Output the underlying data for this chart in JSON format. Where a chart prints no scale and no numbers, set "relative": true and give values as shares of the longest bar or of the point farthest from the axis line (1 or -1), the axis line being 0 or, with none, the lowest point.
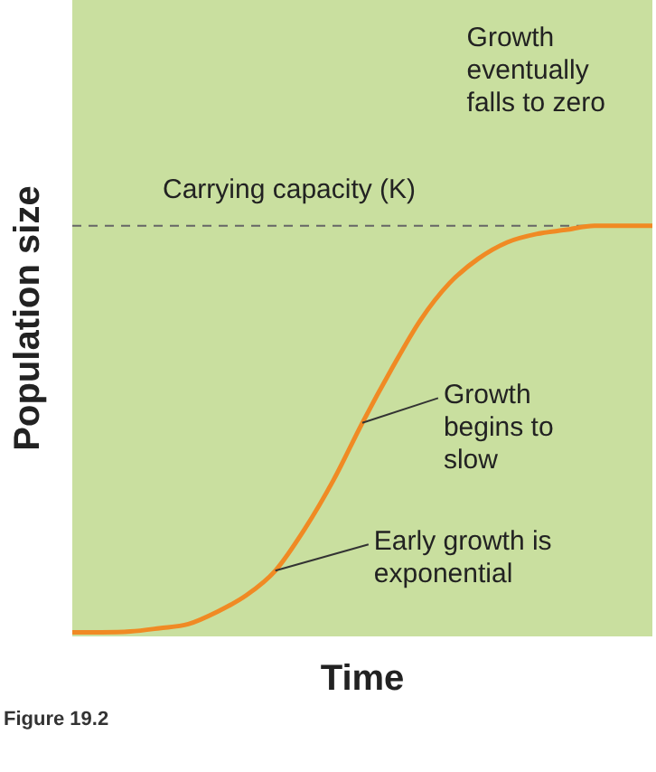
{
  "chart_data": {
    "type": "line",
    "relative": true,
    "xlabel": "Time",
    "ylabel": "Population size",
    "categories": [
      null,
      null,
      null,
      null,
      null,
      null,
      null,
      null,
      null,
      null,
      null,
      null,
      null,
      null,
      null,
      null,
      null,
      null,
      null,
      null,
      null
    ],
    "series": [
      {
        "color": "#f08a24",
        "values": [
          0.01,
          0.01,
          0.012,
          0.02,
          0.03,
          0.06,
          0.1,
          0.16,
          0.26,
          0.38,
          0.52,
          0.65,
          0.77,
          0.86,
          0.92,
          0.96,
          0.98,
          0.99,
          1,
          1,
          1
        ]
      }
    ],
    "ref_lines": [
      {
        "axis": "y",
        "value": 1,
        "label": "Carrying capacity (K)",
        "color": "#666666",
        "line_style": "dashed"
      }
    ],
    "annotations": [
      "Growth eventually falls to zero",
      "Growth begins to slow",
      "Early growth is exponential",
      "Figure 19.2"
    ],
    "grid": false,
    "legend": false,
    "marker": "none",
    "line_style": "solid"
  }
}
